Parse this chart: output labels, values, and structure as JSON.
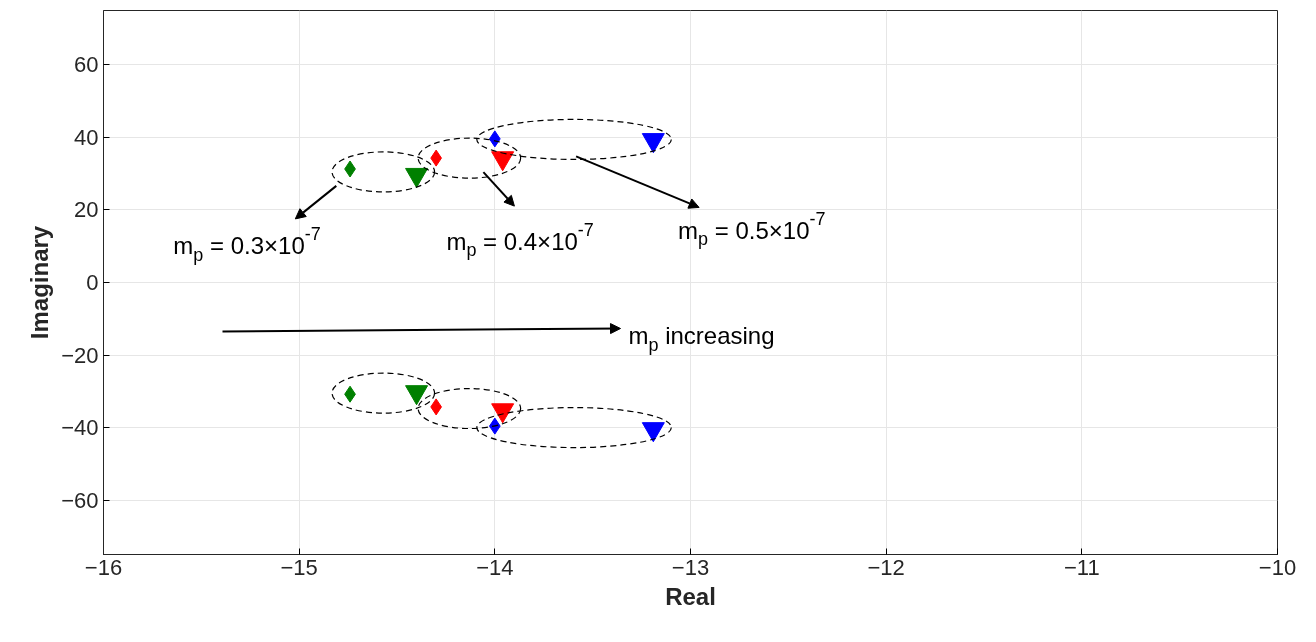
{
  "chart_data": {
    "type": "scatter",
    "xlabel": "Real",
    "ylabel": "Imaginary",
    "xlim": [
      -16,
      -10
    ],
    "xticks": [
      -16,
      -15,
      -14,
      -13,
      -12,
      -11,
      -10
    ],
    "ylim": [
      -75,
      75
    ],
    "yticks": [
      -60,
      -40,
      -20,
      0,
      20,
      40,
      60
    ],
    "grid": true,
    "series": [
      {
        "color": "#008000",
        "marker": "diamond",
        "x": [
          -14.74,
          -14.74
        ],
        "values": [
          31.3,
          -30.8
        ]
      },
      {
        "color": "#008000",
        "marker": "triangle",
        "x": [
          -14.4,
          -14.4
        ],
        "values": [
          29.7,
          -30.2
        ]
      },
      {
        "color": "#ff0000",
        "marker": "diamond",
        "x": [
          -14.3,
          -14.3
        ],
        "values": [
          34.3,
          -34.3
        ]
      },
      {
        "color": "#ff0000",
        "marker": "triangle",
        "x": [
          -13.96,
          -13.96
        ],
        "values": [
          34.3,
          -35.2
        ]
      },
      {
        "color": "#0000ff",
        "marker": "diamond",
        "x": [
          -14.0,
          -14.0
        ],
        "values": [
          39.6,
          -39.6
        ]
      },
      {
        "color": "#0000ff",
        "marker": "triangle",
        "x": [
          -13.19,
          -13.19
        ],
        "values": [
          39.3,
          -40.4
        ]
      }
    ],
    "annotations": [
      "m$_{p}$ = 0.3×10$^{-7}$",
      "m$_{p}$ = 0.4×10$^{-7}$",
      "m$_{p}$ = 0.5×10$^{-7}$",
      "m$_{p}$ increasing"
    ]
  }
}
